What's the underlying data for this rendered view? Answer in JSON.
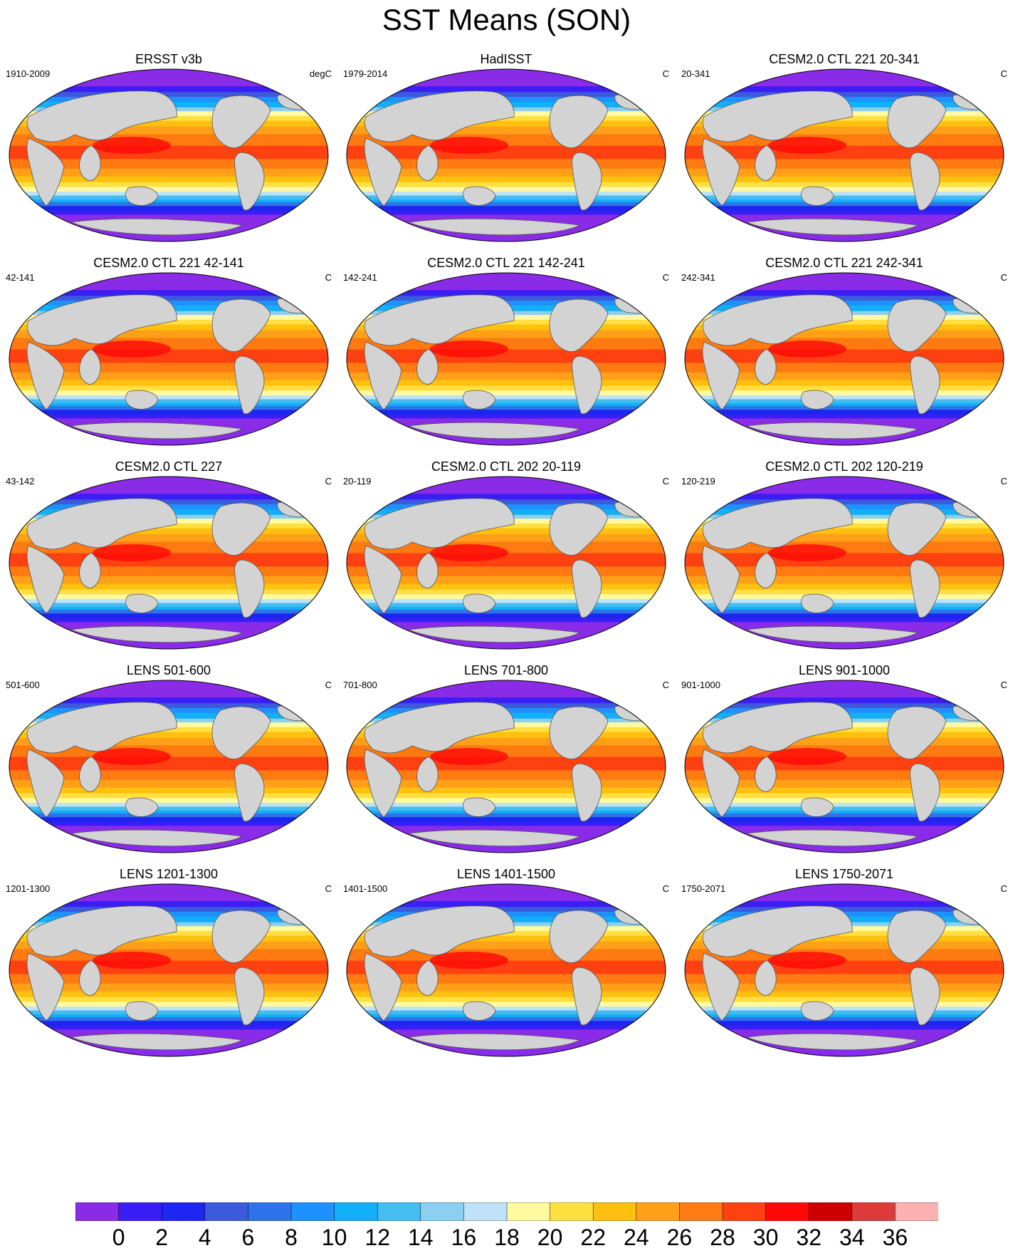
{
  "title": "SST Means (SON)",
  "panels": [
    {
      "title": "ERSST v3b",
      "left": "1910-2009",
      "right": "degC"
    },
    {
      "title": "HadISST",
      "left": "1979-2014",
      "right": "C"
    },
    {
      "title": "CESM2.0 CTL 221 20-341",
      "left": "20-341",
      "right": "C"
    },
    {
      "title": "CESM2.0 CTL 221 42-141",
      "left": "42-141",
      "right": "C"
    },
    {
      "title": "CESM2.0 CTL 221 142-241",
      "left": "142-241",
      "right": "C"
    },
    {
      "title": "CESM2.0 CTL 221 242-341",
      "left": "242-341",
      "right": "C"
    },
    {
      "title": "CESM2.0 CTL 227",
      "left": "43-142",
      "right": "C"
    },
    {
      "title": "CESM2.0 CTL 202 20-119",
      "left": "20-119",
      "right": "C"
    },
    {
      "title": "CESM2.0 CTL 202 120-219",
      "left": "120-219",
      "right": "C"
    },
    {
      "title": "LENS 501-600",
      "left": "501-600",
      "right": "C"
    },
    {
      "title": "LENS 701-800",
      "left": "701-800",
      "right": "C"
    },
    {
      "title": "LENS 901-1000",
      "left": "901-1000",
      "right": "C"
    },
    {
      "title": "LENS 1201-1300",
      "left": "1201-1300",
      "right": "C"
    },
    {
      "title": "LENS 1401-1500",
      "left": "1401-1500",
      "right": "C"
    },
    {
      "title": "LENS 1750-2071",
      "left": "1750-2071",
      "right": "C"
    }
  ],
  "colorbar": {
    "labels": [
      "0",
      "2",
      "4",
      "6",
      "8",
      "10",
      "12",
      "14",
      "16",
      "18",
      "20",
      "22",
      "24",
      "26",
      "28",
      "30",
      "32",
      "34",
      "36"
    ],
    "colors": [
      "#8a2be8",
      "#3a1ef5",
      "#1c26f0",
      "#3c5adc",
      "#2f73ea",
      "#1e90ff",
      "#12b0f8",
      "#45bdf0",
      "#8ccff0",
      "#bfe2f8",
      "#fffaa0",
      "#ffe040",
      "#ffc010",
      "#ffa018",
      "#ff7a10",
      "#ff4010",
      "#ff0808",
      "#cc0000",
      "#dd3a3a",
      "#ffb0b0"
    ]
  },
  "colors": {
    "land": "#d3d3d3",
    "background": "#ffffff"
  }
}
